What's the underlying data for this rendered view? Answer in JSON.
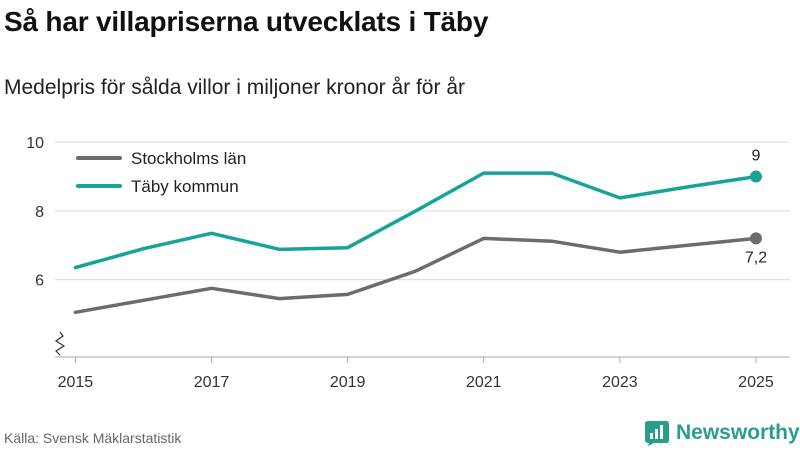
{
  "title": "Så har villapriserna utvecklats i Täby",
  "subtitle": "Medelpris för sålda villor i miljoner kronor år för år",
  "source": "Källa: Svensk Mäklarstatistik",
  "brand": {
    "name": "Newsworthy",
    "icon": "newsworthy-logo-icon",
    "color": "#2a9d8f"
  },
  "chart_data": {
    "type": "line",
    "x": [
      2015,
      2016,
      2017,
      2018,
      2019,
      2020,
      2021,
      2022,
      2023,
      2024,
      2025
    ],
    "x_ticks": [
      "2015",
      "2017",
      "2019",
      "2021",
      "2023",
      "2025"
    ],
    "y_ticks": [
      "6",
      "8",
      "10"
    ],
    "ylim": [
      4.5,
      10
    ],
    "axis_break": true,
    "grid": true,
    "legend_position": "top-left",
    "series": [
      {
        "name": "Stockholms län",
        "color": "#6b6b70",
        "values": [
          5.05,
          5.4,
          5.75,
          5.45,
          5.57,
          6.25,
          7.2,
          7.12,
          6.8,
          7.0,
          7.2
        ],
        "end_label": "7,2"
      },
      {
        "name": "Täby kommun",
        "color": "#17a398",
        "values": [
          6.35,
          6.9,
          7.35,
          6.88,
          6.93,
          8.0,
          9.1,
          9.1,
          8.38,
          8.7,
          9.0
        ],
        "end_label": "9"
      }
    ]
  }
}
